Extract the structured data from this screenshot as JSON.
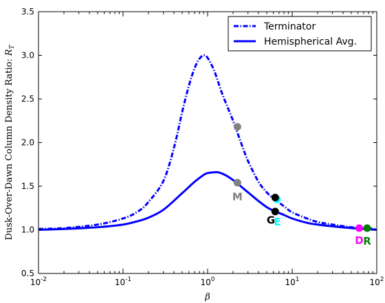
{
  "chart_data": {
    "type": "line",
    "xscale": "log",
    "xlim": [
      0.01,
      100
    ],
    "ylim": [
      0.5,
      3.5
    ],
    "x_ticks": [
      0.01,
      0.1,
      1,
      10,
      100
    ],
    "x_tick_labels": [
      {
        "base": "10",
        "exp": "-2"
      },
      {
        "base": "10",
        "exp": "-1"
      },
      {
        "base": "10",
        "exp": "0"
      },
      {
        "base": "10",
        "exp": "1"
      },
      {
        "base": "10",
        "exp": "2"
      }
    ],
    "y_ticks": [
      0.5,
      1.0,
      1.5,
      2.0,
      2.5,
      3.0,
      3.5
    ],
    "y_tick_labels": [
      "0.5",
      "1.0",
      "1.5",
      "2.0",
      "2.5",
      "3.0",
      "3.5"
    ],
    "xlabel": "β",
    "ylabel": "Dusk-Over-Dawn Column Density Ratio: ",
    "ylabel_symbol": "R",
    "ylabel_subscript": "T",
    "grid": false,
    "legend_position": "top-right",
    "series": [
      {
        "name": "Terminator",
        "style": "dash-dot",
        "color": "#0000ff",
        "points": [
          [
            0.01,
            1.01
          ],
          [
            0.02,
            1.02
          ],
          [
            0.05,
            1.06
          ],
          [
            0.1,
            1.13
          ],
          [
            0.15,
            1.21
          ],
          [
            0.2,
            1.32
          ],
          [
            0.3,
            1.56
          ],
          [
            0.4,
            1.94
          ],
          [
            0.5,
            2.35
          ],
          [
            0.6,
            2.65
          ],
          [
            0.7,
            2.85
          ],
          [
            0.8,
            2.96
          ],
          [
            0.9,
            3.0
          ],
          [
            1.0,
            2.97
          ],
          [
            1.2,
            2.82
          ],
          [
            1.5,
            2.55
          ],
          [
            2.0,
            2.25
          ],
          [
            2.5,
            1.99
          ],
          [
            3.0,
            1.79
          ],
          [
            4.0,
            1.55
          ],
          [
            5.0,
            1.43
          ],
          [
            6.0,
            1.36
          ],
          [
            8.0,
            1.27
          ],
          [
            10,
            1.2
          ],
          [
            15,
            1.13
          ],
          [
            20,
            1.09
          ],
          [
            30,
            1.06
          ],
          [
            50,
            1.03
          ],
          [
            100,
            1.01
          ]
        ]
      },
      {
        "name": "Hemispherical Avg.",
        "style": "solid",
        "color": "#0000ff",
        "points": [
          [
            0.01,
            1.0
          ],
          [
            0.02,
            1.01
          ],
          [
            0.05,
            1.03
          ],
          [
            0.1,
            1.06
          ],
          [
            0.15,
            1.1
          ],
          [
            0.2,
            1.14
          ],
          [
            0.3,
            1.23
          ],
          [
            0.5,
            1.42
          ],
          [
            0.7,
            1.55
          ],
          [
            0.9,
            1.63
          ],
          [
            1.0,
            1.65
          ],
          [
            1.3,
            1.66
          ],
          [
            1.6,
            1.63
          ],
          [
            2.0,
            1.57
          ],
          [
            3.0,
            1.43
          ],
          [
            4.0,
            1.33
          ],
          [
            5.0,
            1.26
          ],
          [
            6.0,
            1.22
          ],
          [
            8.0,
            1.17
          ],
          [
            10,
            1.13
          ],
          [
            15,
            1.08
          ],
          [
            20,
            1.06
          ],
          [
            30,
            1.04
          ],
          [
            50,
            1.02
          ],
          [
            100,
            1.0
          ]
        ]
      }
    ],
    "markers": [
      {
        "x": 2.25,
        "y": 2.18,
        "color": "#808080"
      },
      {
        "x": 2.25,
        "y": 1.54,
        "color": "#808080"
      },
      {
        "x": 6.6,
        "y": 1.35,
        "color": "#00ffff"
      },
      {
        "x": 6.3,
        "y": 1.37,
        "color": "#000000"
      },
      {
        "x": 6.3,
        "y": 1.21,
        "color": "#000000"
      },
      {
        "x": 62,
        "y": 1.02,
        "color": "#ff00ff"
      },
      {
        "x": 77,
        "y": 1.02,
        "color": "#008000"
      }
    ],
    "annotations": [
      {
        "text": "M",
        "x": 2.25,
        "y": 1.34,
        "color": "#808080"
      },
      {
        "text": "G",
        "x": 5.6,
        "y": 1.07,
        "color": "#000000"
      },
      {
        "text": "E",
        "x": 6.7,
        "y": 1.05,
        "color": "#00ffff"
      },
      {
        "text": "D",
        "x": 62,
        "y": 0.84,
        "color": "#ff00ff"
      },
      {
        "text": "R",
        "x": 77,
        "y": 0.83,
        "color": "#008000"
      }
    ]
  }
}
